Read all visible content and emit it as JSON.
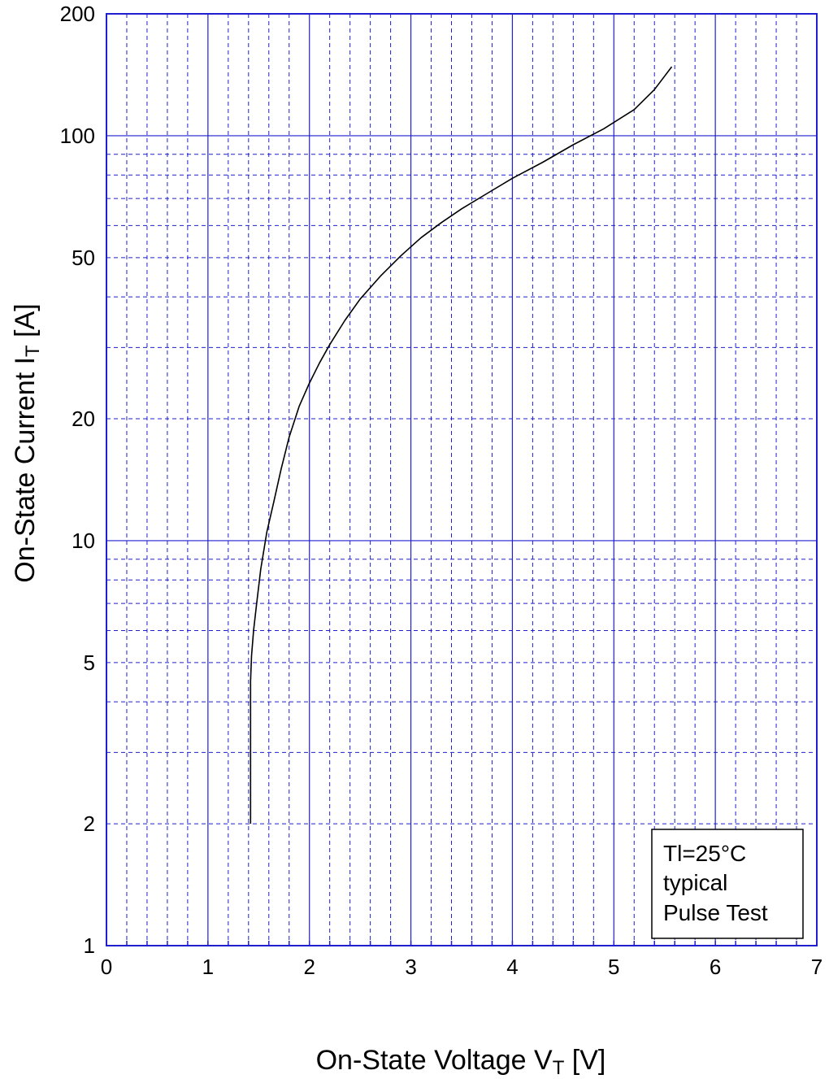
{
  "chart_data": {
    "type": "line",
    "title": "",
    "xlabel": {
      "main": "On-State Voltage   V",
      "sub": "T",
      "unit": " [V]"
    },
    "ylabel": {
      "main": "On-State Current   I",
      "sub": "T",
      "unit": " [A]"
    },
    "xlim": [
      0,
      7
    ],
    "ylim": [
      1,
      200
    ],
    "y_scale": "log",
    "grid": true,
    "x_ticks": [
      "0",
      "1",
      "2",
      "3",
      "4",
      "5",
      "6",
      "7"
    ],
    "y_ticks": [
      {
        "value": 1,
        "label": "1"
      },
      {
        "value": 2,
        "label": "2"
      },
      {
        "value": 5,
        "label": "5"
      },
      {
        "value": 10,
        "label": "10"
      },
      {
        "value": 20,
        "label": "20"
      },
      {
        "value": 50,
        "label": "50"
      },
      {
        "value": 100,
        "label": "100"
      },
      {
        "value": 200,
        "label": "200"
      }
    ],
    "legend": {
      "placement": "bottom-right",
      "lines": [
        "Tl=25°C",
        "typical",
        "Pulse Test"
      ]
    },
    "series": [
      {
        "x": [
          1.42,
          1.42,
          1.43,
          1.45,
          1.48,
          1.52,
          1.58,
          1.65,
          1.72,
          1.8,
          1.9,
          2.0,
          2.1,
          2.2,
          2.35,
          2.5,
          2.7,
          2.9,
          3.1,
          3.3,
          3.5,
          3.75,
          4.0,
          4.3,
          4.6,
          4.9,
          5.2,
          5.4,
          5.57
        ],
        "y": [
          2.0,
          4.5,
          5.2,
          6.0,
          7.0,
          8.5,
          10.5,
          12.5,
          15.0,
          18.0,
          21.5,
          24.5,
          27.5,
          30.5,
          35.0,
          39.5,
          45.0,
          50.5,
          56.0,
          61.0,
          66.0,
          72.0,
          78.5,
          86.0,
          95.0,
          104.0,
          116.0,
          130.0,
          148.0
        ]
      }
    ],
    "colors": {
      "grid": "#1f1fcf",
      "frame": "#1f1fcf",
      "curve": "#000000"
    }
  }
}
